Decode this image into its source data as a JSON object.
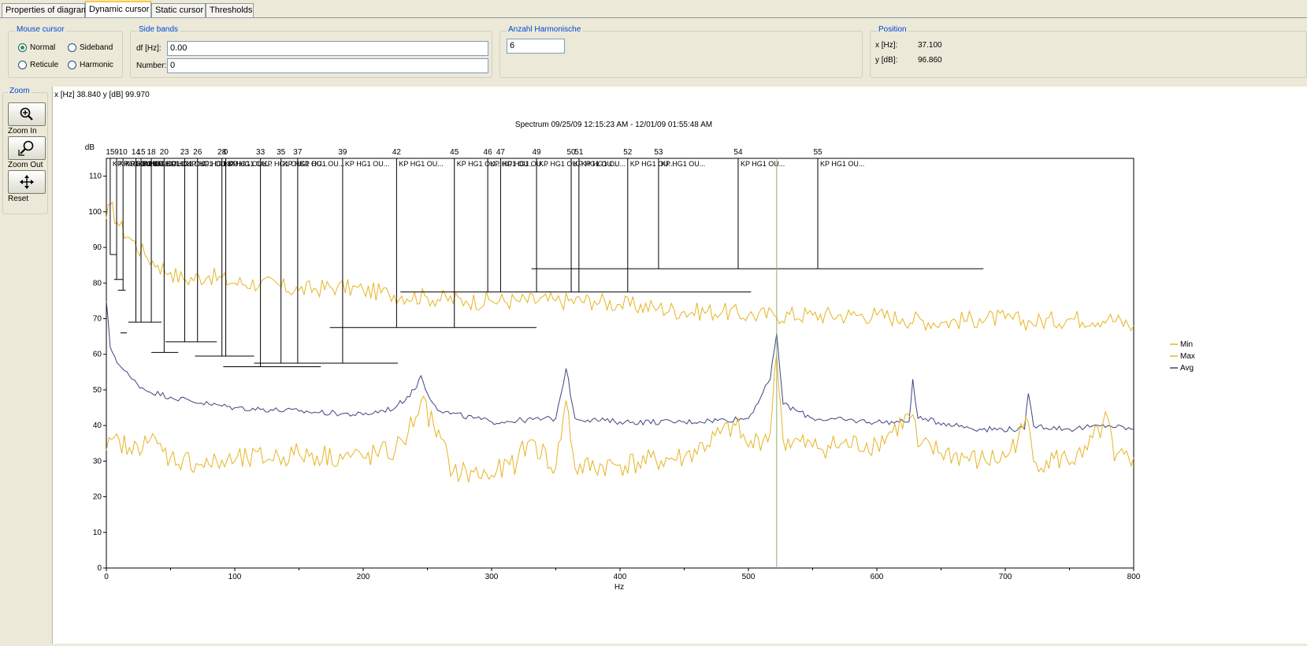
{
  "tabs": [
    "Properties of diagram",
    "Dynamic cursor",
    "Static cursor",
    "Thresholds"
  ],
  "active_tab": 1,
  "mouse_cursor": {
    "title": "Mouse cursor",
    "options": [
      "Normal",
      "Sideband",
      "Reticule",
      "Harmonic"
    ],
    "selected": "Normal"
  },
  "side_bands": {
    "title": "Side bands",
    "df_label": "df [Hz]:",
    "df_value": "0.00",
    "number_label": "Number:",
    "number_value": "0"
  },
  "harmonics": {
    "title": "Anzahl Harmonische",
    "value": "6"
  },
  "position": {
    "title": "Position",
    "x_label": "x [Hz]:",
    "x_value": "37.100",
    "y_label": "y [dB]:",
    "y_value": "96.860"
  },
  "zoom": {
    "title": "Zoom",
    "zoom_in": "Zoom In",
    "zoom_out": "Zoom Out",
    "reset": "Reset",
    "icons": [
      "zoom-in-icon",
      "zoom-out-icon",
      "move-icon"
    ]
  },
  "cursor_readout": "x [Hz]  38.840  y [dB]  99.970",
  "colors": {
    "max": "#e6b422",
    "min": "#e6b422",
    "avg": "#3d4680",
    "cursor": "#8fb070",
    "active_tab": "#ffc83c",
    "group_title": "#0046d5"
  },
  "chart_data": {
    "type": "line",
    "title": "Spectrum 09/25/09 12:15:23 AM - 12/01/09 01:55:48 AM",
    "xlabel": "Hz",
    "ylabel": "dB",
    "xlim": [
      0,
      800
    ],
    "ylim": [
      0,
      115
    ],
    "xticks": [
      0,
      100,
      200,
      300,
      400,
      500,
      600,
      700,
      800
    ],
    "yticks": [
      0,
      10,
      20,
      30,
      40,
      50,
      60,
      70,
      80,
      90,
      100,
      110
    ],
    "legend": [
      "Min",
      "Max",
      "Avg"
    ],
    "legend_position": "right",
    "cursor_x": 522,
    "series": [
      {
        "name": "Max",
        "color": "#e6b422",
        "x": [
          0,
          3,
          10,
          20,
          30,
          40,
          50,
          60,
          80,
          100,
          120,
          150,
          180,
          200,
          220,
          250,
          280,
          300,
          320,
          350,
          380,
          400,
          430,
          450,
          480,
          500,
          520,
          550,
          580,
          600,
          620,
          650,
          680,
          700,
          720,
          750,
          780,
          800
        ],
        "y": [
          98,
          102,
          96,
          92,
          88,
          85,
          83,
          81,
          82,
          80,
          80,
          78,
          79,
          78,
          77,
          76,
          75,
          75,
          75,
          75,
          75,
          74,
          73,
          72,
          72,
          71,
          71,
          71,
          71,
          71,
          70,
          69,
          70,
          70,
          69,
          70,
          70,
          68
        ]
      },
      {
        "name": "Avg",
        "color": "#3d4680",
        "x": [
          0,
          3,
          10,
          20,
          30,
          50,
          80,
          100,
          150,
          200,
          225,
          240,
          245,
          250,
          260,
          300,
          350,
          358,
          365,
          400,
          450,
          500,
          517,
          522,
          527,
          550,
          600,
          625,
          628,
          632,
          680,
          715,
          718,
          722,
          750,
          780,
          800
        ],
        "y": [
          75,
          62,
          57,
          53,
          50,
          48,
          46,
          45,
          44,
          43,
          45,
          50,
          54,
          49,
          44,
          41,
          42,
          56,
          42,
          41,
          41,
          42,
          53,
          66,
          46,
          42,
          41,
          41,
          53,
          42,
          39,
          39,
          49,
          40,
          39,
          40,
          39
        ]
      },
      {
        "name": "Min",
        "color": "#e6b422",
        "x": [
          0,
          10,
          20,
          30,
          50,
          80,
          100,
          150,
          200,
          225,
          235,
          245,
          255,
          270,
          300,
          320,
          330,
          350,
          358,
          365,
          400,
          450,
          490,
          500,
          517,
          522,
          527,
          550,
          600,
          628,
          632,
          680,
          700,
          718,
          722,
          760,
          780,
          785,
          800
        ],
        "y": [
          33,
          36,
          32,
          37,
          31,
          29,
          30,
          32,
          31,
          33,
          38,
          47,
          40,
          27,
          26,
          30,
          36,
          28,
          47,
          28,
          29,
          31,
          40,
          34,
          38,
          60,
          36,
          34,
          35,
          43,
          34,
          30,
          31,
          41,
          30,
          31,
          42,
          30,
          31
        ]
      }
    ],
    "cursor_marks": [
      {
        "label": "15",
        "x": 3,
        "y": 111,
        "bar": 88
      },
      {
        "label": "9",
        "x": 8,
        "y": 111,
        "bar": 81
      },
      {
        "label": "10",
        "x": 13,
        "y": 111,
        "bar": 78
      },
      {
        "label": "14",
        "x": 23,
        "y": 111,
        "bar": 69
      },
      {
        "label": "15",
        "x": 27,
        "y": 111,
        "bar": 69
      },
      {
        "label": "18",
        "x": 35,
        "y": 111,
        "bar": 69
      },
      {
        "label": "20",
        "x": 45,
        "y": 111,
        "bar": 60.5
      },
      {
        "label": "23",
        "x": 61,
        "y": 111,
        "bar": 63.5
      },
      {
        "label": "26",
        "x": 71,
        "y": 111,
        "bar": 63.5
      },
      {
        "label": "28",
        "x": 90,
        "y": 111,
        "bar": 59.5
      },
      {
        "label": "0",
        "x": 93,
        "y": 111,
        "bar": 59.5
      },
      {
        "label": "33",
        "x": 120,
        "y": 111,
        "bar": 56.5
      },
      {
        "label": "35",
        "x": 136,
        "y": 111,
        "bar": 57.5
      },
      {
        "label": "37",
        "x": 149,
        "y": 111,
        "bar": 57.5
      },
      {
        "label": "39",
        "x": 184,
        "y": 111,
        "bar": 57.5
      },
      {
        "label": "42",
        "x": 226,
        "y": 111,
        "bar": 67.5
      },
      {
        "label": "45",
        "x": 271,
        "y": 111,
        "bar": 67.5
      },
      {
        "label": "46",
        "x": 297,
        "y": 111,
        "bar": 77.5
      },
      {
        "label": "47",
        "x": 307,
        "y": 111,
        "bar": 77.5
      },
      {
        "label": "49",
        "x": 335,
        "y": 111,
        "bar": 77.5
      },
      {
        "label": "50",
        "x": 362,
        "y": 111,
        "bar": 77.5
      },
      {
        "label": "51",
        "x": 368,
        "y": 111,
        "bar": 77.5
      },
      {
        "label": "52",
        "x": 406,
        "y": 111,
        "bar": 77.5
      },
      {
        "label": "53",
        "x": 430,
        "y": 111,
        "bar": 84
      },
      {
        "label": "54",
        "x": 492,
        "y": 111,
        "bar": 84
      },
      {
        "label": "55",
        "x": 554,
        "y": 111,
        "bar": 84
      }
    ],
    "annotation_text": "KP HG1 OU...",
    "bands": [
      {
        "x1": 3,
        "x2": 8,
        "y": 88
      },
      {
        "x1": 6,
        "x2": 13,
        "y": 81
      },
      {
        "x1": 9,
        "x2": 15,
        "y": 78
      },
      {
        "x1": 11,
        "x2": 16,
        "y": 66
      },
      {
        "x1": 17,
        "x2": 43,
        "y": 69
      },
      {
        "x1": 35,
        "x2": 56,
        "y": 60.5
      },
      {
        "x1": 46,
        "x2": 86,
        "y": 63.5
      },
      {
        "x1": 69,
        "x2": 115,
        "y": 59.5
      },
      {
        "x1": 91,
        "x2": 146,
        "y": 56.5
      },
      {
        "x1": 104,
        "x2": 167,
        "y": 56.5
      },
      {
        "x1": 115,
        "x2": 227,
        "y": 57.5
      },
      {
        "x1": 174,
        "x2": 335,
        "y": 67.5
      },
      {
        "x1": 229,
        "x2": 502,
        "y": 77.5
      },
      {
        "x1": 331,
        "x2": 683,
        "y": 84
      }
    ]
  }
}
